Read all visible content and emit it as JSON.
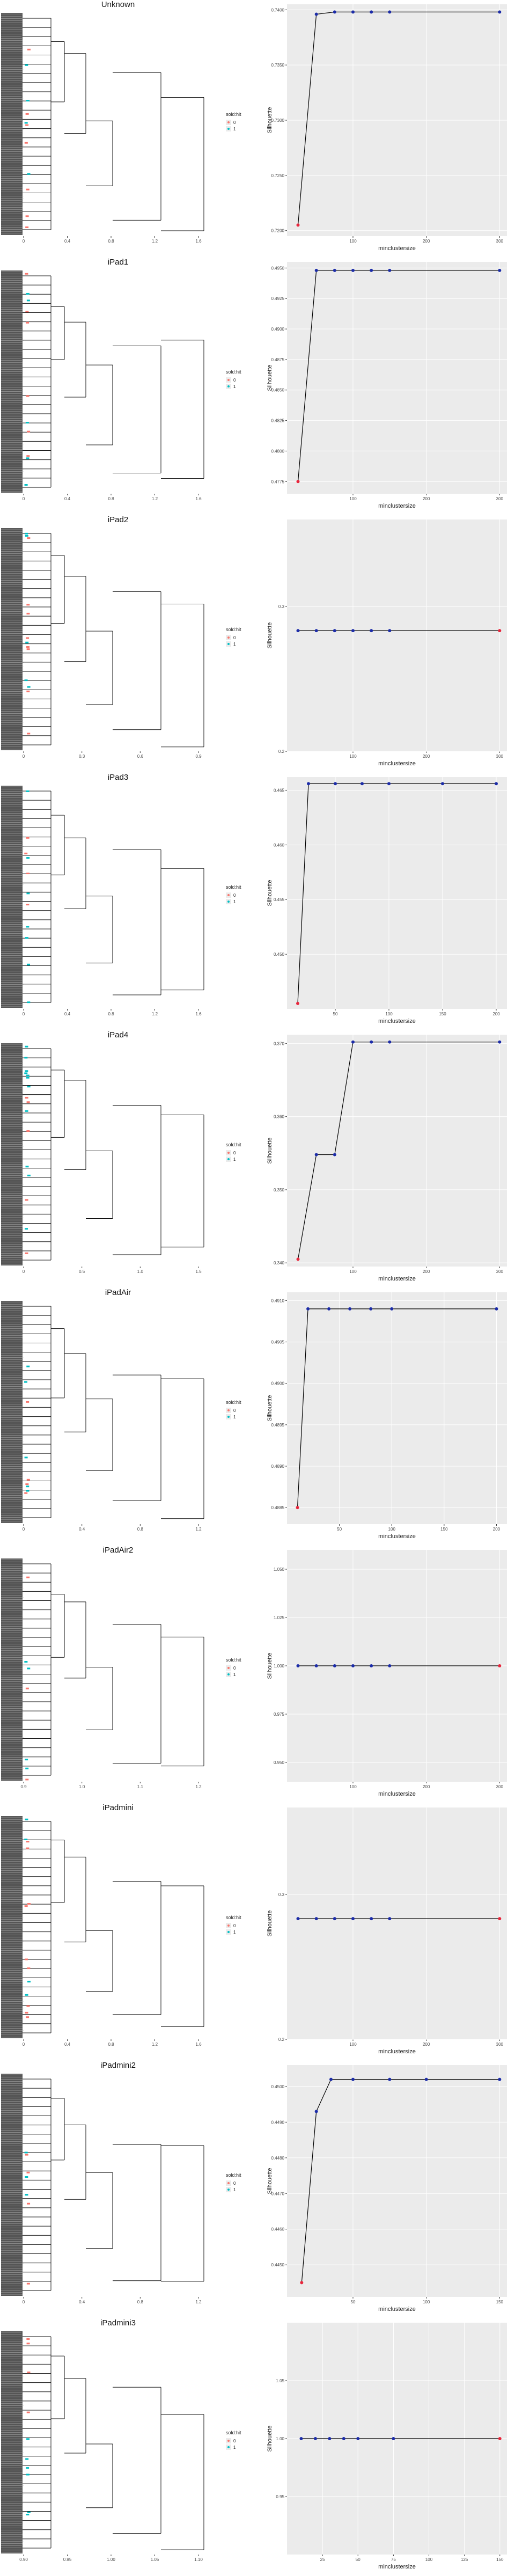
{
  "colors": {
    "red": "#f8766d",
    "blue": "#00bfc4",
    "panel": "#ebebeb",
    "grid": "#ffffff",
    "line": "#000000",
    "pt_red": "#e8263c",
    "pt_blue": "#1c2ca8"
  },
  "legend": {
    "title": "sold:hit",
    "items": [
      "0",
      "1"
    ]
  },
  "labels": {
    "x": "minclustersize",
    "y": "Silhouette"
  },
  "panels": [
    {
      "title": "Unknown",
      "dendro_ticks": [
        "0",
        "0.4",
        "0.8",
        "1.2",
        "1.6"
      ],
      "chart_data": {
        "type": "line",
        "xlabel": "minclustersize",
        "ylabel": "Silhouette",
        "x": [
          25,
          50,
          75,
          100,
          125,
          150,
          300
        ],
        "y": [
          0.7205,
          0.7396,
          0.7398,
          0.7398,
          0.7398,
          0.7398,
          0.7398
        ],
        "xlim": [
          10,
          310
        ],
        "ylim": [
          0.7195,
          0.7405
        ],
        "xticks": [
          "100",
          "200",
          "300"
        ],
        "yticks": [
          "0.7200",
          "0.7250",
          "0.7300",
          "0.7350",
          "0.7400"
        ]
      }
    },
    {
      "title": "iPad1",
      "dendro_ticks": [
        "0",
        "0.4",
        "0.8",
        "1.2",
        "1.6"
      ],
      "chart_data": {
        "type": "line",
        "xlabel": "minclustersize",
        "ylabel": "Silhouette",
        "x": [
          25,
          50,
          75,
          100,
          125,
          150,
          300
        ],
        "y": [
          0.4775,
          0.4948,
          0.4948,
          0.4948,
          0.4948,
          0.4948,
          0.4948
        ],
        "xlim": [
          10,
          310
        ],
        "ylim": [
          0.4765,
          0.4955
        ],
        "xticks": [
          "100",
          "200",
          "300"
        ],
        "yticks": [
          "0.4775",
          "0.4800",
          "0.4825",
          "0.4850",
          "0.4875",
          "0.4900",
          "0.4925",
          "0.4950"
        ]
      }
    },
    {
      "title": "iPad2",
      "dendro_ticks": [
        "0",
        "0.3",
        "0.6",
        "0.9"
      ],
      "chart_data": {
        "type": "line",
        "xlabel": "minclustersize",
        "ylabel": "Silhouette",
        "x": [
          25,
          50,
          75,
          100,
          125,
          150,
          300
        ],
        "y": [
          0.2833,
          0.2833,
          0.2833,
          0.2833,
          0.2833,
          0.2833,
          0.2833
        ],
        "xlim": [
          10,
          310
        ],
        "ylim": [
          0.2,
          0.36
        ],
        "xticks": [
          "100",
          "200",
          "300"
        ],
        "yticks": [
          "0.2",
          "0.3"
        ]
      }
    },
    {
      "title": "iPad3",
      "dendro_ticks": [
        "0",
        "0.4",
        "0.8",
        "1.2",
        "1.6"
      ],
      "chart_data": {
        "type": "line",
        "xlabel": "minclustersize",
        "ylabel": "Silhouette",
        "x": [
          15,
          25,
          50,
          75,
          100,
          150,
          200
        ],
        "y": [
          0.4455,
          0.4656,
          0.4656,
          0.4656,
          0.4656,
          0.4656,
          0.4656
        ],
        "xlim": [
          5,
          210
        ],
        "ylim": [
          0.445,
          0.4662
        ],
        "xticks": [
          "50",
          "100",
          "150",
          "200"
        ],
        "yticks": [
          "0.450",
          "0.455",
          "0.460",
          "0.465"
        ]
      }
    },
    {
      "title": "iPad4",
      "dendro_ticks": [
        "0",
        "0.5",
        "1.0",
        "1.5"
      ],
      "chart_data": {
        "type": "line",
        "xlabel": "minclustersize",
        "ylabel": "Silhouette",
        "x": [
          25,
          50,
          75,
          100,
          125,
          150,
          300
        ],
        "y": [
          0.3405,
          0.3548,
          0.3548,
          0.3702,
          0.3702,
          0.3702,
          0.3702
        ],
        "xlim": [
          10,
          310
        ],
        "ylim": [
          0.3395,
          0.3712
        ],
        "xticks": [
          "100",
          "200",
          "300"
        ],
        "yticks": [
          "0.340",
          "0.350",
          "0.360",
          "0.370"
        ]
      }
    },
    {
      "title": "iPadAir",
      "dendro_ticks": [
        "0",
        "0.4",
        "0.8",
        "1.2"
      ],
      "chart_data": {
        "type": "line",
        "xlabel": "minclustersize",
        "ylabel": "Silhouette",
        "x": [
          10,
          20,
          40,
          60,
          80,
          100,
          200
        ],
        "y": [
          0.4885,
          0.4909,
          0.4909,
          0.4909,
          0.4909,
          0.4909,
          0.4909
        ],
        "xlim": [
          0,
          210
        ],
        "ylim": [
          0.4883,
          0.4911
        ],
        "xticks": [
          "50",
          "100",
          "150",
          "200"
        ],
        "yticks": [
          "0.4885",
          "0.4890",
          "0.4895",
          "0.4900",
          "0.4905",
          "0.4910"
        ]
      }
    },
    {
      "title": "iPadAir2",
      "dendro_ticks": [
        "0.9",
        "1.0",
        "1.1",
        "1.2"
      ],
      "chart_data": {
        "type": "line",
        "xlabel": "minclustersize",
        "ylabel": "Silhouette",
        "x": [
          25,
          50,
          75,
          100,
          125,
          150,
          300
        ],
        "y": [
          1.0,
          1.0,
          1.0,
          1.0,
          1.0,
          1.0,
          1.0
        ],
        "xlim": [
          10,
          310
        ],
        "ylim": [
          0.94,
          1.06
        ],
        "xticks": [
          "100",
          "200",
          "300"
        ],
        "yticks": [
          "0.950",
          "0.975",
          "1.000",
          "1.025",
          "1.050"
        ]
      }
    },
    {
      "title": "iPadmini",
      "dendro_ticks": [
        "0",
        "0.4",
        "0.8",
        "1.2",
        "1.6"
      ],
      "chart_data": {
        "type": "line",
        "xlabel": "minclustersize",
        "ylabel": "Silhouette",
        "x": [
          25,
          50,
          75,
          100,
          125,
          150,
          300
        ],
        "y": [
          0.2833,
          0.2833,
          0.2833,
          0.2833,
          0.2833,
          0.2833,
          0.2833
        ],
        "xlim": [
          10,
          310
        ],
        "ylim": [
          0.2,
          0.36
        ],
        "xticks": [
          "100",
          "200",
          "300"
        ],
        "yticks": [
          "0.2",
          "0.3"
        ]
      }
    },
    {
      "title": "iPadmini2",
      "dendro_ticks": [
        "0",
        "0.4",
        "0.8",
        "1.2"
      ],
      "chart_data": {
        "type": "line",
        "xlabel": "minclustersize",
        "ylabel": "Silhouette",
        "x": [
          15,
          25,
          35,
          50,
          75,
          100,
          150
        ],
        "y": [
          0.4445,
          0.4493,
          0.4502,
          0.4502,
          0.4502,
          0.4502,
          0.4502
        ],
        "xlim": [
          5,
          155
        ],
        "ylim": [
          0.4441,
          0.4506
        ],
        "xticks": [
          "50",
          "100",
          "150"
        ],
        "yticks": [
          "0.4450",
          "0.4460",
          "0.4470",
          "0.4480",
          "0.4490",
          "0.4500"
        ]
      }
    },
    {
      "title": "iPadmini3",
      "dendro_ticks": [
        "0.90",
        "0.95",
        "1.00",
        "1.05",
        "1.10"
      ],
      "chart_data": {
        "type": "line",
        "xlabel": "minclustersize",
        "ylabel": "Silhouette",
        "x": [
          10,
          20,
          30,
          40,
          50,
          75,
          150
        ],
        "y": [
          1.0,
          1.0,
          1.0,
          1.0,
          1.0,
          1.0,
          1.0
        ],
        "xlim": [
          0,
          155
        ],
        "ylim": [
          0.9,
          1.1
        ],
        "xticks": [
          "25",
          "50",
          "75",
          "100",
          "125",
          "150"
        ],
        "yticks": [
          "0.95",
          "1.00",
          "1.05"
        ]
      }
    }
  ]
}
